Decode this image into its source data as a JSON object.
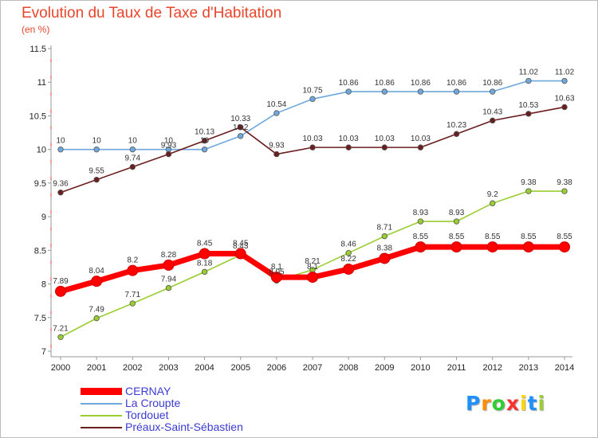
{
  "title": "Evolution du Taux de Taxe d'Habitation",
  "unit": "(en %)",
  "logo": "Proxiti",
  "chart_data": {
    "type": "line",
    "title": "Evolution du Taux de Taxe d'Habitation",
    "ylabel": "(en %)",
    "xlabel": "",
    "ylim": [
      7,
      11.5
    ],
    "y_ticks": [
      "7",
      "7.5",
      "8",
      "8.5",
      "9",
      "9.5",
      "10",
      "10.5",
      "11",
      "11.5"
    ],
    "x": [
      "2000",
      "2001",
      "2002",
      "2003",
      "2004",
      "2005",
      "2006",
      "2007",
      "2008",
      "2009",
      "2010",
      "2011",
      "2012",
      "2013",
      "2014"
    ],
    "grid": false,
    "legend": "bottom-left",
    "series": [
      {
        "name": "CERNAY",
        "color": "#ff0000",
        "values": [
          7.89,
          8.04,
          8.2,
          8.28,
          8.45,
          8.45,
          8.1,
          8.1,
          8.22,
          8.38,
          8.55,
          8.55,
          8.55,
          8.55,
          8.55
        ],
        "labels": [
          "7.89",
          "8.04",
          "8.2",
          "8.28",
          "8.45",
          "8.45",
          "8.1",
          "8.1",
          "8.22",
          "8.38",
          "8.55",
          "8.55",
          "8.55",
          "8.55",
          "8.55"
        ]
      },
      {
        "name": "La Croupte",
        "color": "#6fa8dc",
        "values": [
          10,
          10,
          10,
          10,
          10,
          10.2,
          10.54,
          10.75,
          10.86,
          10.86,
          10.86,
          10.86,
          10.86,
          11.02,
          11.02
        ],
        "labels": [
          "10",
          "10",
          "10",
          "10",
          "10",
          "10.2",
          "10.54",
          "10.75",
          "10.86",
          "10.86",
          "10.86",
          "10.86",
          "10.86",
          "11.02",
          "11.02"
        ]
      },
      {
        "name": "Tordouet",
        "color": "#9acd32",
        "values": [
          7.21,
          7.49,
          7.71,
          7.94,
          8.18,
          8.43,
          8.05,
          8.21,
          8.46,
          8.71,
          8.93,
          8.93,
          9.2,
          9.38,
          9.38
        ],
        "labels": [
          "7.21",
          "7.49",
          "7.71",
          "7.94",
          "8.18",
          "8.43",
          "8.05",
          "8.21",
          "8.46",
          "8.71",
          "8.93",
          "8.93",
          "9.2",
          "9.38",
          "9.38"
        ]
      },
      {
        "name": "Préaux-Saint-Sébastien",
        "color": "#6b1e1e",
        "values": [
          9.36,
          9.55,
          9.74,
          9.93,
          10.13,
          10.33,
          9.93,
          10.03,
          10.03,
          10.03,
          10.03,
          10.23,
          10.43,
          10.53,
          10.63
        ],
        "labels": [
          "9.36",
          "9.55",
          "9.74",
          "9.93",
          "10.13",
          "10.33",
          "9.93",
          "10.03",
          "10.03",
          "10.03",
          "10.03",
          "10.23",
          "10.43",
          "10.53",
          "10.63"
        ]
      }
    ]
  }
}
